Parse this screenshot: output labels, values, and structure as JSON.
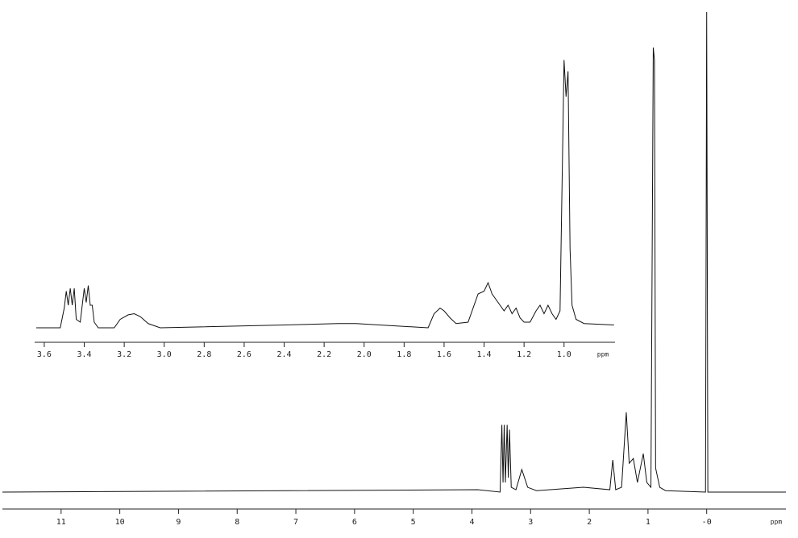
{
  "chart_data": [
    {
      "type": "line",
      "xlabel": "ppm",
      "x": [
        12,
        3.9,
        3.52,
        3.49,
        3.47,
        3.45,
        3.43,
        3.4,
        3.38,
        3.36,
        3.33,
        3.25,
        3.15,
        3.05,
        2.9,
        2.1,
        1.65,
        1.6,
        1.55,
        1.45,
        1.37,
        1.32,
        1.25,
        1.18,
        1.08,
        1.02,
        0.95,
        0.91,
        0.89,
        0.87,
        0.8,
        0.7,
        0.02,
        0,
        -0.02,
        -1.35
      ],
      "series": [
        {
          "color": "#111111",
          "values": [
            0,
            0.5,
            0,
            14,
            2,
            14,
            2,
            14,
            3,
            13,
            1,
            0.5,
            4.7,
            1,
            0.3,
            1,
            0.5,
            6.7,
            0.5,
            1,
            16.6,
            6,
            7,
            2,
            8,
            2,
            1,
            92.6,
            90,
            5,
            1,
            0.3,
            0,
            100,
            0,
            0
          ]
        }
      ],
      "xlim": [
        12,
        -1.35
      ],
      "ylim": [
        0,
        100
      ],
      "xticks": [
        11,
        10,
        9,
        8,
        7,
        6,
        5,
        4,
        3,
        2,
        1,
        {
          "value": 0,
          "label": "-0"
        }
      ]
    },
    {
      "type": "line",
      "xlabel": "ppm",
      "x": [
        3.64,
        3.52,
        3.5,
        3.49,
        3.48,
        3.47,
        3.46,
        3.45,
        3.44,
        3.42,
        3.41,
        3.4,
        3.39,
        3.38,
        3.37,
        3.36,
        3.35,
        3.33,
        3.25,
        3.22,
        3.18,
        3.15,
        3.12,
        3.08,
        3.02,
        2.4,
        2.13,
        2.04,
        1.68,
        1.65,
        1.62,
        1.6,
        1.57,
        1.54,
        1.48,
        1.43,
        1.4,
        1.38,
        1.36,
        1.34,
        1.32,
        1.3,
        1.28,
        1.26,
        1.24,
        1.22,
        1.2,
        1.17,
        1.14,
        1.12,
        1.1,
        1.08,
        1.06,
        1.04,
        1.02,
        1.0,
        0.99,
        0.98,
        0.97,
        0.96,
        0.94,
        0.9,
        0.75
      ],
      "series": [
        {
          "color": "#111111",
          "values": [
            0,
            0,
            7,
            13,
            8,
            14,
            8,
            14,
            3,
            2,
            8,
            14,
            9,
            15,
            8,
            8,
            2,
            0,
            0,
            3,
            4.6,
            5,
            4,
            1.5,
            0,
            1,
            1.5,
            1.5,
            0,
            5,
            7,
            6,
            3.5,
            1.5,
            2,
            12,
            13,
            16,
            12,
            10,
            8,
            6,
            8,
            5,
            7,
            3.5,
            2,
            2,
            6,
            8,
            5,
            8,
            5,
            3,
            6,
            95,
            82,
            91,
            28,
            8,
            3,
            1.5,
            1
          ]
        }
      ],
      "xlim": [
        3.648,
        0.745
      ],
      "ylim": [
        0,
        100
      ],
      "xticks": [
        3.6,
        3.4,
        3.2,
        {
          "value": 3,
          "label": "3.0"
        },
        2.8,
        2.6,
        2.4,
        2.2,
        {
          "value": 2,
          "label": "2.0"
        },
        1.8,
        1.6,
        1.4,
        1.2,
        {
          "value": 1,
          "label": "1.0"
        }
      ]
    }
  ]
}
